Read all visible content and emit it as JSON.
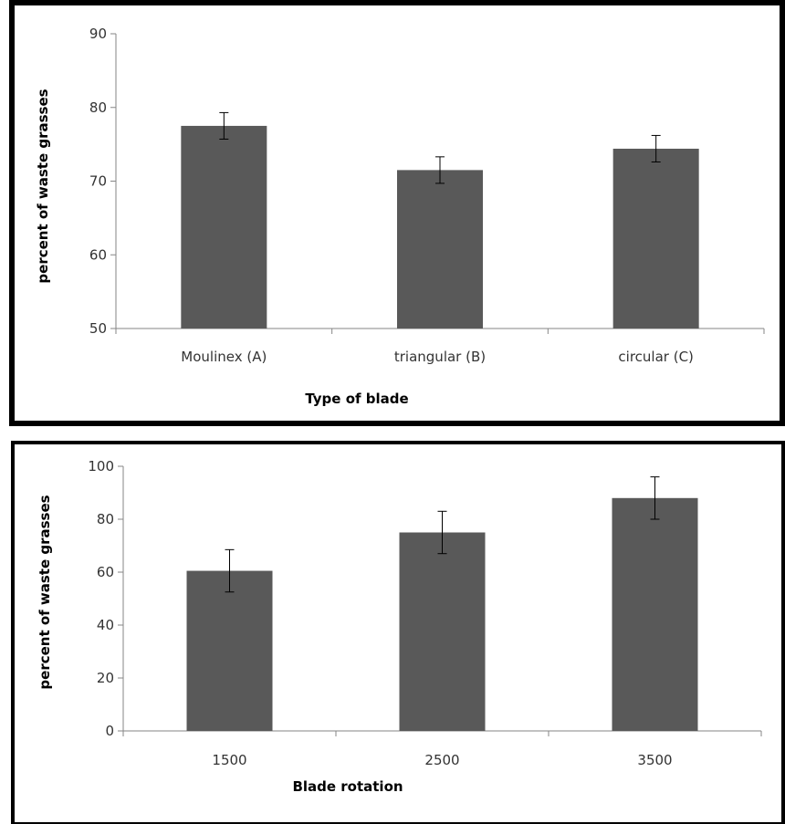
{
  "chart_data": [
    {
      "type": "bar",
      "categories": [
        "Moulinex (A)",
        "triangular (B)",
        "circular (C)"
      ],
      "values": [
        77.5,
        71.5,
        74.4
      ],
      "errors": [
        1.8,
        1.8,
        1.8
      ],
      "xlabel": "Type of blade",
      "ylabel": "percent of waste grasses",
      "ylim": [
        50,
        90
      ],
      "yticks": [
        50,
        60,
        70,
        80,
        90
      ],
      "grid": false,
      "bar_color": "#595959"
    },
    {
      "type": "bar",
      "categories": [
        "1500",
        "2500",
        "3500"
      ],
      "values": [
        60.5,
        75,
        88
      ],
      "errors": [
        8,
        8,
        8
      ],
      "xlabel": "Blade rotation",
      "ylabel": "percent of waste  grasses",
      "ylim": [
        0,
        100
      ],
      "yticks": [
        0,
        20,
        40,
        60,
        80,
        100
      ],
      "grid": false,
      "bar_color": "#595959"
    }
  ]
}
